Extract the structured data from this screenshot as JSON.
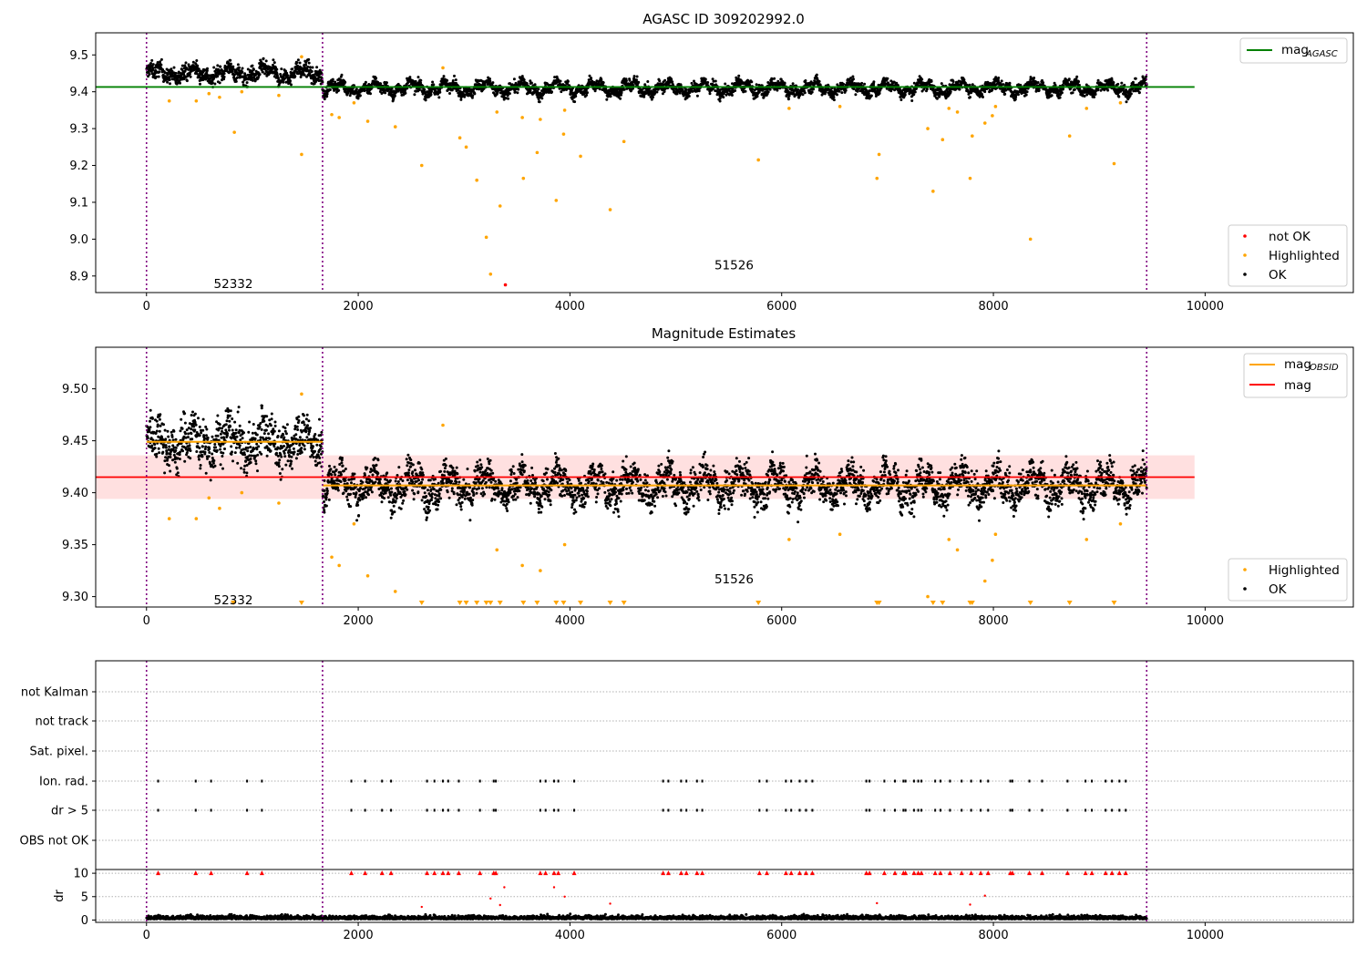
{
  "colors": {
    "ok": "#000000",
    "highlighted": "#ffa500",
    "not_ok": "#ff0000",
    "mag_agasc_line": "#008000",
    "mag_obsid_line": "#ffa500",
    "mag_line": "#ff0000",
    "mag_band": "#ffd6d6",
    "boundary": "#800080",
    "grid": "#b0b0b0"
  },
  "chart_data": [
    {
      "type": "scatter",
      "title": "AGASC ID 309202992.0",
      "xlim": [
        -480,
        11400
      ],
      "ylim": [
        8.855,
        9.56
      ],
      "xticks": [
        0,
        2000,
        4000,
        6000,
        8000,
        10000
      ],
      "xtick_labels": [
        "0",
        "2000",
        "4000",
        "6000",
        "8000",
        "10000"
      ],
      "yticks": [
        8.9,
        9.0,
        9.1,
        9.2,
        9.3,
        9.4,
        9.5
      ],
      "ytick_labels": [
        "8.9",
        "9.0",
        "9.1",
        "9.2",
        "9.3",
        "9.4",
        "9.5"
      ],
      "obsid_boundaries": [
        0,
        1663,
        9448
      ],
      "obsid_labels": [
        {
          "text": "52332",
          "x": 820,
          "y": 8.88
        },
        {
          "text": "51526",
          "x": 5550,
          "y": 8.93
        }
      ],
      "reference_lines": [
        {
          "name": "mag_AGASC",
          "value": 9.413,
          "x_range": [
            -480,
            9900
          ],
          "color": "#008000"
        }
      ],
      "series": [
        {
          "name": "not OK",
          "points": [
            [
              3390,
              8.876
            ]
          ]
        },
        {
          "name": "Highlighted",
          "points": [
            [
              215,
              9.375
            ],
            [
              470,
              9.375
            ],
            [
              590,
              9.395
            ],
            [
              690,
              9.385
            ],
            [
              830,
              9.29
            ],
            [
              900,
              9.4
            ],
            [
              1250,
              9.39
            ],
            [
              1465,
              9.23
            ],
            [
              1465,
              9.495
            ],
            [
              1750,
              9.338
            ],
            [
              1820,
              9.33
            ],
            [
              1960,
              9.37
            ],
            [
              2090,
              9.32
            ],
            [
              2350,
              9.305
            ],
            [
              2600,
              9.2
            ],
            [
              2800,
              9.465
            ],
            [
              2960,
              9.275
            ],
            [
              3020,
              9.25
            ],
            [
              3120,
              9.16
            ],
            [
              3210,
              9.005
            ],
            [
              3250,
              8.905
            ],
            [
              3310,
              9.345
            ],
            [
              3340,
              9.09
            ],
            [
              3550,
              9.33
            ],
            [
              3560,
              9.165
            ],
            [
              3690,
              9.235
            ],
            [
              3720,
              9.325
            ],
            [
              3870,
              9.105
            ],
            [
              3940,
              9.285
            ],
            [
              3950,
              9.35
            ],
            [
              4100,
              9.225
            ],
            [
              4380,
              9.08
            ],
            [
              4510,
              9.265
            ],
            [
              5780,
              9.215
            ],
            [
              6070,
              9.355
            ],
            [
              6550,
              9.36
            ],
            [
              6900,
              9.165
            ],
            [
              6920,
              9.23
            ],
            [
              7380,
              9.3
            ],
            [
              7430,
              9.13
            ],
            [
              7520,
              9.27
            ],
            [
              7580,
              9.355
            ],
            [
              7660,
              9.345
            ],
            [
              7780,
              9.165
            ],
            [
              7800,
              9.28
            ],
            [
              7920,
              9.315
            ],
            [
              7990,
              9.335
            ],
            [
              8020,
              9.36
            ],
            [
              8350,
              9.0
            ],
            [
              8720,
              9.28
            ],
            [
              8880,
              9.355
            ],
            [
              9140,
              9.205
            ],
            [
              9200,
              9.37
            ]
          ]
        }
      ],
      "ok_band_description_free": true,
      "ok_segments": [
        {
          "x_range": [
            0,
            1663
          ],
          "center": 9.45,
          "spread": 0.03
        },
        {
          "x_range": [
            1663,
            9448
          ],
          "center": 9.41,
          "spread": 0.022
        }
      ],
      "legend_upper": [
        {
          "label": "mag",
          "sub": "AGASC"
        }
      ],
      "legend_lower": [
        "not OK",
        "Highlighted",
        "OK"
      ]
    },
    {
      "type": "scatter",
      "title": "Magnitude Estimates",
      "xlim": [
        -480,
        11400
      ],
      "ylim": [
        9.29,
        9.54
      ],
      "xticks": [
        0,
        2000,
        4000,
        6000,
        8000,
        10000
      ],
      "xtick_labels": [
        "0",
        "2000",
        "4000",
        "6000",
        "8000",
        "10000"
      ],
      "yticks": [
        9.3,
        9.35,
        9.4,
        9.45,
        9.5
      ],
      "ytick_labels": [
        "9.30",
        "9.35",
        "9.40",
        "9.45",
        "9.50"
      ],
      "obsid_labels": [
        {
          "text": "52332",
          "x": 820,
          "y": 9.297
        },
        {
          "text": "51526",
          "x": 5550,
          "y": 9.317
        }
      ],
      "mag_line": 9.415,
      "mag_band": [
        9.394,
        9.436
      ],
      "mag_obsid": [
        {
          "x_range": [
            0,
            1663
          ],
          "value": 9.449
        },
        {
          "x_range": [
            1663,
            9448
          ],
          "value": 9.407
        }
      ],
      "off_scale_markers_x": [
        820,
        1465,
        2600,
        2960,
        3020,
        3120,
        3210,
        3250,
        3340,
        3560,
        3690,
        3870,
        3940,
        4100,
        4380,
        4510,
        5780,
        6900,
        6920,
        7430,
        7520,
        7780,
        7800,
        8350,
        8720,
        9140
      ],
      "legend_upper": [
        {
          "label": "mag",
          "sub": "OBSID"
        },
        {
          "label": "mag",
          "sub": ""
        }
      ],
      "legend_lower": [
        "Highlighted",
        "OK"
      ]
    },
    {
      "type": "scatter",
      "title": "",
      "categories": [
        "not Kalman",
        "not track",
        "Sat. pixel.",
        "Ion. rad.",
        "dr > 5",
        "OBS not OK"
      ],
      "flag_x": [
        110,
        465,
        610,
        950,
        1090,
        1935,
        2065,
        2225,
        2310,
        2650,
        2720,
        2800,
        2850,
        2950,
        3150,
        3280,
        3300,
        3720,
        3770,
        3850,
        3890,
        4040,
        4880,
        4930,
        5050,
        5100,
        5200,
        5250,
        5790,
        5860,
        6040,
        6090,
        6170,
        6230,
        6290,
        6800,
        6830,
        6970,
        7070,
        7150,
        7170,
        7250,
        7290,
        7320,
        7450,
        7500,
        7590,
        7700,
        7790,
        7880,
        7950,
        8160,
        8180,
        8340,
        8460,
        8700,
        8870,
        8930,
        9060,
        9120,
        9190,
        9250
      ],
      "dr": {
        "ylabel": "dr",
        "ylim": [
          -0.5,
          10.8
        ],
        "yticks": [
          0,
          5,
          10
        ],
        "ytick_labels": [
          "0",
          "5",
          "10"
        ],
        "outliers": [
          [
            2600,
            2.8
          ],
          [
            3250,
            4.6
          ],
          [
            3340,
            3.2
          ],
          [
            3380,
            7.0
          ],
          [
            3850,
            7.0
          ],
          [
            3950,
            5.0
          ],
          [
            4380,
            3.5
          ],
          [
            6900,
            3.6
          ],
          [
            7780,
            3.3
          ],
          [
            7920,
            5.2
          ]
        ]
      }
    }
  ]
}
